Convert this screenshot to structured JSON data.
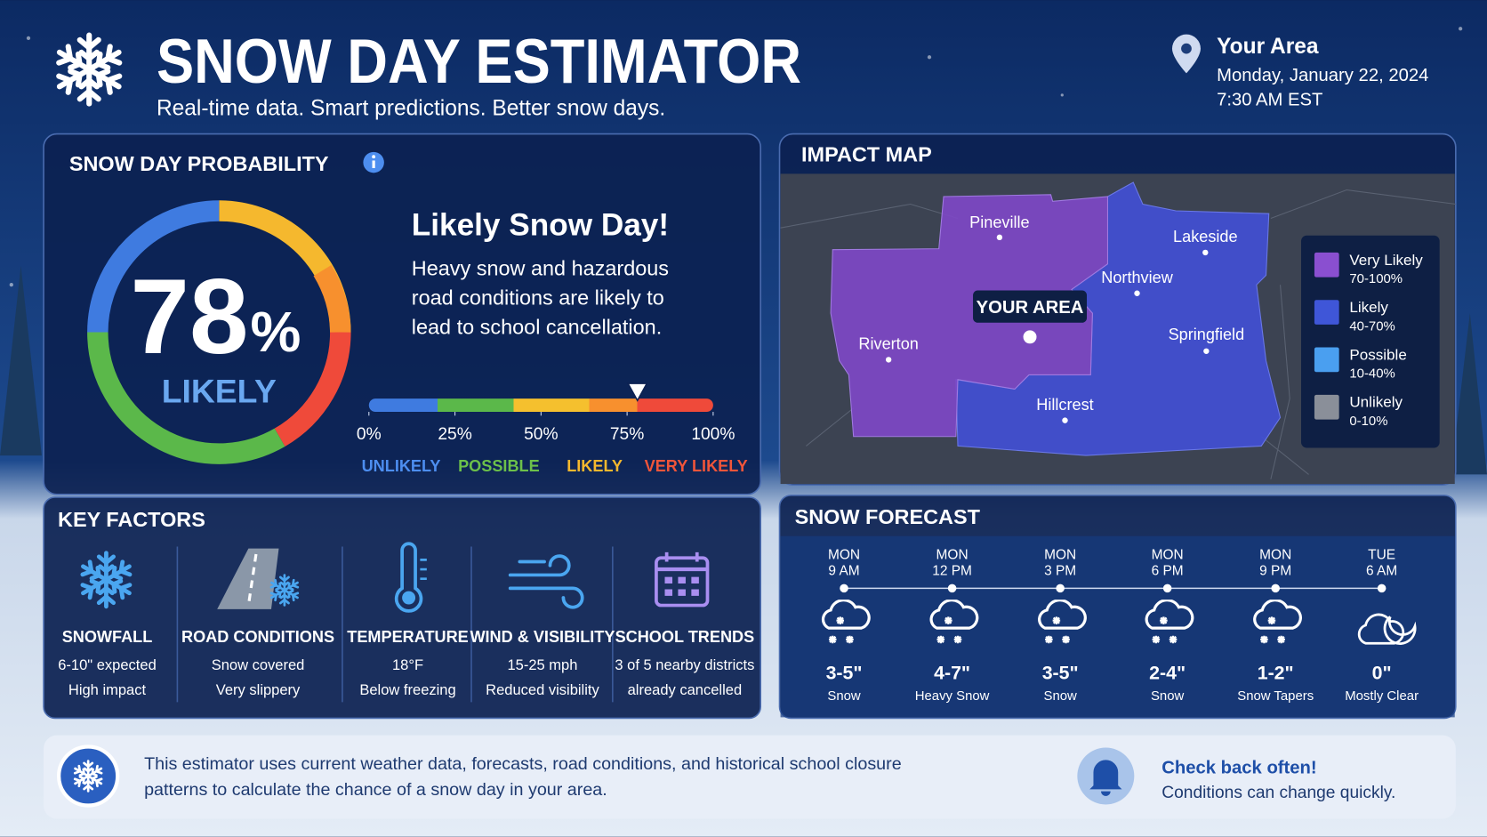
{
  "header": {
    "title": "SNOW DAY ESTIMATOR",
    "subtitle": "Real-time data. Smart predictions. Better snow days.",
    "location": "Your Area",
    "date": "Monday, January 22, 2024",
    "time": "7:30 AM EST"
  },
  "probability": {
    "title": "SNOW DAY PROBABILITY",
    "value": 78,
    "unit": "%",
    "level": "LIKELY",
    "headline": "Likely Snow Day!",
    "description": [
      "Heavy snow and hazardous",
      "road conditions are likely to",
      "lead to school cancellation."
    ],
    "scale_ticks": [
      {
        "value": 0,
        "label": "0%"
      },
      {
        "value": 25,
        "label": "25%"
      },
      {
        "value": 50,
        "label": "50%"
      },
      {
        "value": 75,
        "label": "75%"
      },
      {
        "value": 100,
        "label": "100%"
      }
    ],
    "scale_bands": [
      {
        "name": "UNLIKELY",
        "color": "#4d8ef0"
      },
      {
        "name": "POSSIBLE",
        "color": "#6cc04a"
      },
      {
        "name": "LIKELY",
        "color": "#f5b82e"
      },
      {
        "name": "VERY LIKELY",
        "color": "#f0553a"
      }
    ]
  },
  "impact_map": {
    "title": "IMPACT MAP",
    "your_area": "YOUR AREA",
    "towns": [
      "Pineville",
      "Lakeside",
      "Northview",
      "Springfield",
      "Riverton",
      "Hillcrest"
    ],
    "legend": [
      {
        "name": "Very Likely",
        "range": "70-100%",
        "color": "#8a4fd0"
      },
      {
        "name": "Likely",
        "range": "40-70%",
        "color": "#3f56d8"
      },
      {
        "name": "Possible",
        "range": "10-40%",
        "color": "#4a9ff0"
      },
      {
        "name": "Unlikely",
        "range": "0-10%",
        "color": "#8a8f99"
      }
    ]
  },
  "key_factors": {
    "title": "KEY FACTORS",
    "items": [
      {
        "name": "SNOWFALL",
        "details": [
          "6-10\" expected",
          "High impact"
        ]
      },
      {
        "name": "ROAD CONDITIONS",
        "details": [
          "Snow covered",
          "Very slippery"
        ]
      },
      {
        "name": "TEMPERATURE",
        "details": [
          "18°F",
          "Below freezing"
        ]
      },
      {
        "name": "WIND & VISIBILITY",
        "details": [
          "15-25 mph",
          "Reduced visibility"
        ]
      },
      {
        "name": "SCHOOL TRENDS",
        "details": [
          "3 of 5 nearby districts",
          "already cancelled"
        ]
      }
    ]
  },
  "forecast": {
    "title": "SNOW FORECAST",
    "periods": [
      {
        "day": "MON",
        "time": "9 AM",
        "amount": "3-5\"",
        "condition": "Snow"
      },
      {
        "day": "MON",
        "time": "12 PM",
        "amount": "4-7\"",
        "condition": "Heavy Snow"
      },
      {
        "day": "MON",
        "time": "3 PM",
        "amount": "3-5\"",
        "condition": "Snow"
      },
      {
        "day": "MON",
        "time": "6 PM",
        "amount": "2-4\"",
        "condition": "Snow"
      },
      {
        "day": "MON",
        "time": "9 PM",
        "amount": "1-2\"",
        "condition": "Snow Tapers"
      },
      {
        "day": "TUE",
        "time": "6 AM",
        "amount": "0\"",
        "condition": "Mostly Clear"
      }
    ]
  },
  "footer": {
    "note": [
      "This estimator uses current weather data, forecasts, road conditions, and historical school closure",
      "patterns to calculate the chance of a snow day in your area."
    ],
    "reminder_title": "Check back often!",
    "reminder_text": "Conditions can change quickly."
  }
}
